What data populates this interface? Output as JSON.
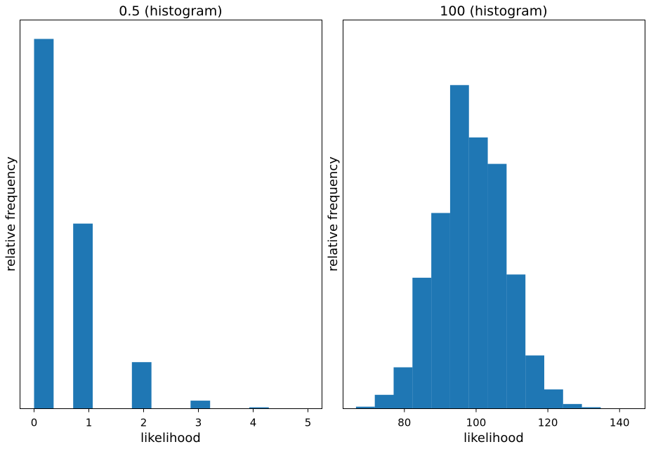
{
  "chart_data": [
    {
      "type": "bar",
      "title": "0.5 (histogram)",
      "xlabel": "likelihood",
      "ylabel": "relative frequency",
      "xlim": [
        -0.25,
        5.25
      ],
      "ylim": [
        0,
        0.637
      ],
      "xticks": [
        0,
        1,
        2,
        3,
        4,
        5
      ],
      "yticks_shown": false,
      "bar_color": "#1f77b4",
      "bins": [
        {
          "x0": 0.0,
          "x1": 0.357,
          "value": 0.6065
        },
        {
          "x0": 0.714,
          "x1": 1.071,
          "value": 0.3033
        },
        {
          "x0": 1.786,
          "x1": 2.143,
          "value": 0.0758
        },
        {
          "x0": 2.857,
          "x1": 3.214,
          "value": 0.0126
        },
        {
          "x0": 3.929,
          "x1": 4.286,
          "value": 0.0016
        }
      ]
    },
    {
      "type": "bar",
      "title": "100 (histogram)",
      "xlabel": "likelihood",
      "ylabel": "relative frequency",
      "xlim": [
        63,
        147
      ],
      "ylim": [
        0,
        0.0719
      ],
      "xticks": [
        80,
        100,
        120,
        140
      ],
      "yticks_shown": false,
      "bar_color": "#1f77b4",
      "bins": [
        {
          "x0": 66.5,
          "x1": 71.75,
          "value": 0.0003
        },
        {
          "x0": 71.75,
          "x1": 77.0,
          "value": 0.0025
        },
        {
          "x0": 77.0,
          "x1": 82.25,
          "value": 0.0076
        },
        {
          "x0": 82.25,
          "x1": 87.5,
          "value": 0.0242
        },
        {
          "x0": 87.5,
          "x1": 92.75,
          "value": 0.0362
        },
        {
          "x0": 92.75,
          "x1": 98.0,
          "value": 0.0599
        },
        {
          "x0": 98.0,
          "x1": 103.25,
          "value": 0.0502
        },
        {
          "x0": 103.25,
          "x1": 108.5,
          "value": 0.0453
        },
        {
          "x0": 108.5,
          "x1": 113.75,
          "value": 0.0248
        },
        {
          "x0": 113.75,
          "x1": 119.0,
          "value": 0.0098
        },
        {
          "x0": 119.0,
          "x1": 124.25,
          "value": 0.0035
        },
        {
          "x0": 124.25,
          "x1": 129.5,
          "value": 0.0008
        },
        {
          "x0": 129.5,
          "x1": 134.75,
          "value": 0.0002
        }
      ]
    }
  ]
}
